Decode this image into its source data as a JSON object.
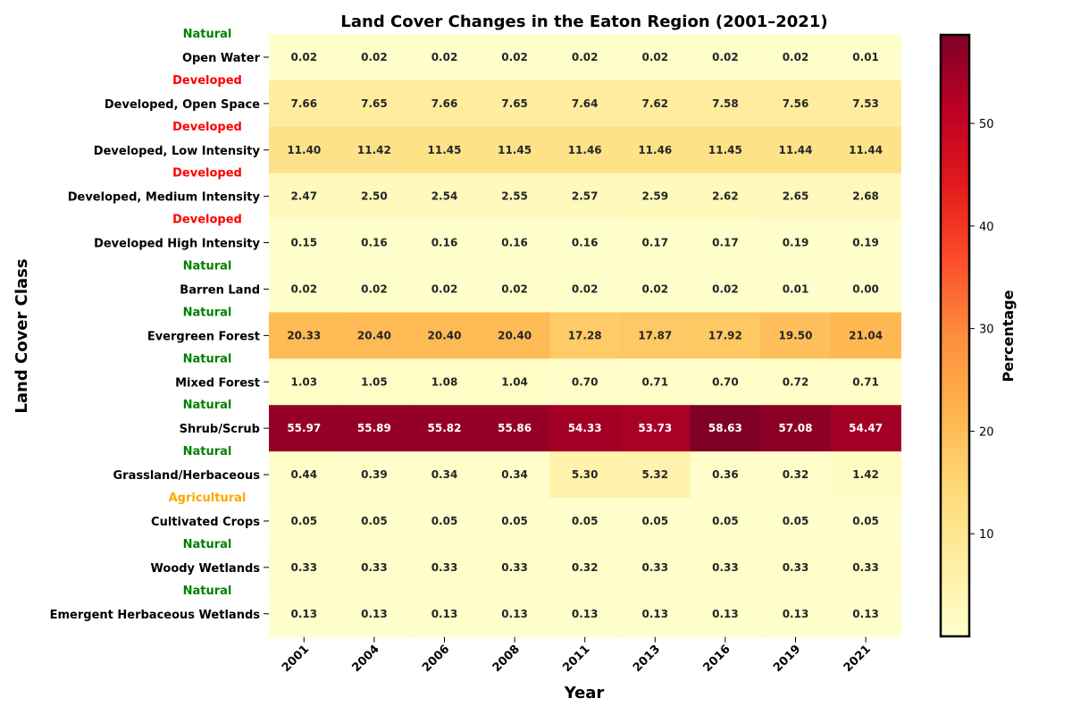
{
  "chart_data": {
    "type": "heatmap",
    "title": "Land Cover Changes in the Eaton Region (2001–2021)",
    "xlabel": "Year",
    "ylabel": "Land Cover Class",
    "colorbar_label": "Percentage",
    "colorbar_ticks": [
      10,
      20,
      30,
      40,
      50
    ],
    "value_range": [
      0,
      58.63
    ],
    "colormap": "YlOrRd",
    "years": [
      "2001",
      "2004",
      "2006",
      "2008",
      "2011",
      "2013",
      "2016",
      "2019",
      "2021"
    ],
    "rows": [
      {
        "name": "Open Water",
        "category": "Natural",
        "values": [
          0.02,
          0.02,
          0.02,
          0.02,
          0.02,
          0.02,
          0.02,
          0.02,
          0.01
        ]
      },
      {
        "name": "Developed, Open Space",
        "category": "Developed",
        "values": [
          7.66,
          7.65,
          7.66,
          7.65,
          7.64,
          7.62,
          7.58,
          7.56,
          7.53
        ]
      },
      {
        "name": "Developed, Low Intensity",
        "category": "Developed",
        "values": [
          11.4,
          11.42,
          11.45,
          11.45,
          11.46,
          11.46,
          11.45,
          11.44,
          11.44
        ]
      },
      {
        "name": "Developed, Medium Intensity",
        "category": "Developed",
        "values": [
          2.47,
          2.5,
          2.54,
          2.55,
          2.57,
          2.59,
          2.62,
          2.65,
          2.68
        ]
      },
      {
        "name": "Developed High Intensity",
        "category": "Developed",
        "values": [
          0.15,
          0.16,
          0.16,
          0.16,
          0.16,
          0.17,
          0.17,
          0.19,
          0.19
        ]
      },
      {
        "name": "Barren Land",
        "category": "Natural",
        "values": [
          0.02,
          0.02,
          0.02,
          0.02,
          0.02,
          0.02,
          0.02,
          0.01,
          0.0
        ]
      },
      {
        "name": "Evergreen Forest",
        "category": "Natural",
        "values": [
          20.33,
          20.4,
          20.4,
          20.4,
          17.28,
          17.87,
          17.92,
          19.5,
          21.04
        ]
      },
      {
        "name": "Mixed Forest",
        "category": "Natural",
        "values": [
          1.03,
          1.05,
          1.08,
          1.04,
          0.7,
          0.71,
          0.7,
          0.72,
          0.71
        ]
      },
      {
        "name": "Shrub/Scrub",
        "category": "Natural",
        "values": [
          55.97,
          55.89,
          55.82,
          55.86,
          54.33,
          53.73,
          58.63,
          57.08,
          54.47
        ]
      },
      {
        "name": "Grassland/Herbaceous",
        "category": "Natural",
        "values": [
          0.44,
          0.39,
          0.34,
          0.34,
          5.3,
          5.32,
          0.36,
          0.32,
          1.42
        ]
      },
      {
        "name": "Cultivated Crops",
        "category": "Agricultural",
        "values": [
          0.05,
          0.05,
          0.05,
          0.05,
          0.05,
          0.05,
          0.05,
          0.05,
          0.05
        ]
      },
      {
        "name": "Woody Wetlands",
        "category": "Natural",
        "values": [
          0.33,
          0.33,
          0.33,
          0.33,
          0.32,
          0.33,
          0.33,
          0.33,
          0.33
        ]
      },
      {
        "name": "Emergent Herbaceous Wetlands",
        "category": "Natural",
        "values": [
          0.13,
          0.13,
          0.13,
          0.13,
          0.13,
          0.13,
          0.13,
          0.13,
          0.13
        ]
      }
    ],
    "category_colors": {
      "Natural": "#008000",
      "Developed": "#ff0000",
      "Agricultural": "#ffa500"
    },
    "grid": false
  }
}
